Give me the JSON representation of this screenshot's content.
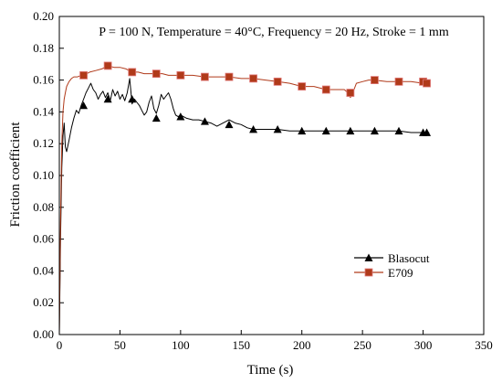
{
  "chart_data": {
    "type": "line",
    "title": "",
    "annotation": "P = 100 N, Temperature = 40°C, Frequency = 20 Hz, Stroke = 1 mm",
    "xlabel": "Time (s)",
    "ylabel": "Friction coefficient",
    "xlim": [
      0,
      350
    ],
    "ylim": [
      0,
      0.2
    ],
    "xticks": [
      0,
      50,
      100,
      150,
      200,
      250,
      300,
      350
    ],
    "yticks": [
      0.0,
      0.02,
      0.04,
      0.06,
      0.08,
      0.1,
      0.12,
      0.14,
      0.16,
      0.18,
      0.2
    ],
    "xtick_labels": [
      "0",
      "50",
      "100",
      "150",
      "200",
      "250",
      "300",
      "350"
    ],
    "ytick_labels": [
      "0.00",
      "0.02",
      "0.04",
      "0.06",
      "0.08",
      "0.10",
      "0.12",
      "0.14",
      "0.16",
      "0.18",
      "0.20"
    ],
    "grid": false,
    "legend_position": "bottom-right",
    "series": [
      {
        "name": "Blasocut",
        "color": "#000000",
        "marker": "triangle",
        "line": [
          [
            0,
            0.0
          ],
          [
            1,
            0.06
          ],
          [
            2,
            0.105
          ],
          [
            3,
            0.125
          ],
          [
            4,
            0.133
          ],
          [
            5,
            0.118
          ],
          [
            6,
            0.115
          ],
          [
            8,
            0.122
          ],
          [
            10,
            0.13
          ],
          [
            12,
            0.136
          ],
          [
            14,
            0.141
          ],
          [
            16,
            0.139
          ],
          [
            18,
            0.144
          ],
          [
            20,
            0.148
          ],
          [
            22,
            0.152
          ],
          [
            24,
            0.155
          ],
          [
            26,
            0.158
          ],
          [
            28,
            0.154
          ],
          [
            30,
            0.152
          ],
          [
            32,
            0.148
          ],
          [
            34,
            0.151
          ],
          [
            36,
            0.153
          ],
          [
            38,
            0.149
          ],
          [
            40,
            0.152
          ],
          [
            42,
            0.147
          ],
          [
            44,
            0.154
          ],
          [
            46,
            0.15
          ],
          [
            48,
            0.153
          ],
          [
            50,
            0.148
          ],
          [
            52,
            0.151
          ],
          [
            54,
            0.147
          ],
          [
            56,
            0.152
          ],
          [
            58,
            0.161
          ],
          [
            60,
            0.145
          ],
          [
            62,
            0.148
          ],
          [
            64,
            0.146
          ],
          [
            66,
            0.144
          ],
          [
            68,
            0.141
          ],
          [
            70,
            0.138
          ],
          [
            72,
            0.14
          ],
          [
            74,
            0.146
          ],
          [
            76,
            0.15
          ],
          [
            78,
            0.142
          ],
          [
            80,
            0.139
          ],
          [
            82,
            0.144
          ],
          [
            84,
            0.151
          ],
          [
            86,
            0.148
          ],
          [
            88,
            0.15
          ],
          [
            90,
            0.152
          ],
          [
            92,
            0.148
          ],
          [
            94,
            0.142
          ],
          [
            96,
            0.138
          ],
          [
            98,
            0.137
          ],
          [
            100,
            0.138
          ],
          [
            105,
            0.136
          ],
          [
            110,
            0.135
          ],
          [
            115,
            0.135
          ],
          [
            120,
            0.134
          ],
          [
            125,
            0.133
          ],
          [
            130,
            0.131
          ],
          [
            135,
            0.133
          ],
          [
            140,
            0.135
          ],
          [
            145,
            0.133
          ],
          [
            150,
            0.132
          ],
          [
            155,
            0.13
          ],
          [
            160,
            0.129
          ],
          [
            170,
            0.129
          ],
          [
            180,
            0.129
          ],
          [
            190,
            0.128
          ],
          [
            200,
            0.128
          ],
          [
            210,
            0.128
          ],
          [
            220,
            0.128
          ],
          [
            230,
            0.128
          ],
          [
            240,
            0.128
          ],
          [
            250,
            0.128
          ],
          [
            260,
            0.128
          ],
          [
            270,
            0.128
          ],
          [
            280,
            0.128
          ],
          [
            290,
            0.127
          ],
          [
            300,
            0.127
          ],
          [
            305,
            0.127
          ]
        ],
        "markers": [
          [
            20,
            0.144
          ],
          [
            40,
            0.148
          ],
          [
            60,
            0.148
          ],
          [
            80,
            0.136
          ],
          [
            100,
            0.137
          ],
          [
            120,
            0.134
          ],
          [
            140,
            0.132
          ],
          [
            160,
            0.129
          ],
          [
            180,
            0.129
          ],
          [
            200,
            0.128
          ],
          [
            220,
            0.128
          ],
          [
            240,
            0.128
          ],
          [
            260,
            0.128
          ],
          [
            280,
            0.128
          ],
          [
            300,
            0.127
          ],
          [
            303,
            0.127
          ]
        ]
      },
      {
        "name": "E709",
        "color": "#b03a1a",
        "marker": "square",
        "line": [
          [
            0,
            0.0
          ],
          [
            1,
            0.07
          ],
          [
            2,
            0.12
          ],
          [
            3,
            0.14
          ],
          [
            4,
            0.148
          ],
          [
            5,
            0.152
          ],
          [
            6,
            0.156
          ],
          [
            8,
            0.159
          ],
          [
            10,
            0.161
          ],
          [
            12,
            0.162
          ],
          [
            15,
            0.162
          ],
          [
            18,
            0.163
          ],
          [
            20,
            0.163
          ],
          [
            25,
            0.165
          ],
          [
            30,
            0.166
          ],
          [
            35,
            0.167
          ],
          [
            40,
            0.169
          ],
          [
            45,
            0.168
          ],
          [
            50,
            0.168
          ],
          [
            55,
            0.167
          ],
          [
            60,
            0.165
          ],
          [
            65,
            0.165
          ],
          [
            70,
            0.164
          ],
          [
            75,
            0.164
          ],
          [
            80,
            0.164
          ],
          [
            85,
            0.164
          ],
          [
            90,
            0.163
          ],
          [
            95,
            0.163
          ],
          [
            100,
            0.163
          ],
          [
            110,
            0.163
          ],
          [
            120,
            0.162
          ],
          [
            130,
            0.162
          ],
          [
            140,
            0.162
          ],
          [
            150,
            0.161
          ],
          [
            160,
            0.161
          ],
          [
            170,
            0.16
          ],
          [
            180,
            0.159
          ],
          [
            190,
            0.158
          ],
          [
            200,
            0.156
          ],
          [
            210,
            0.156
          ],
          [
            220,
            0.154
          ],
          [
            230,
            0.154
          ],
          [
            235,
            0.154
          ],
          [
            238,
            0.152
          ],
          [
            240,
            0.149
          ],
          [
            242,
            0.152
          ],
          [
            245,
            0.158
          ],
          [
            250,
            0.159
          ],
          [
            255,
            0.16
          ],
          [
            260,
            0.16
          ],
          [
            270,
            0.159
          ],
          [
            280,
            0.159
          ],
          [
            290,
            0.159
          ],
          [
            300,
            0.158
          ],
          [
            305,
            0.158
          ]
        ],
        "markers": [
          [
            20,
            0.163
          ],
          [
            40,
            0.169
          ],
          [
            60,
            0.165
          ],
          [
            80,
            0.164
          ],
          [
            100,
            0.163
          ],
          [
            120,
            0.162
          ],
          [
            140,
            0.162
          ],
          [
            160,
            0.161
          ],
          [
            180,
            0.159
          ],
          [
            200,
            0.156
          ],
          [
            220,
            0.154
          ],
          [
            240,
            0.152
          ],
          [
            260,
            0.16
          ],
          [
            280,
            0.159
          ],
          [
            300,
            0.159
          ],
          [
            303,
            0.158
          ]
        ]
      }
    ]
  }
}
